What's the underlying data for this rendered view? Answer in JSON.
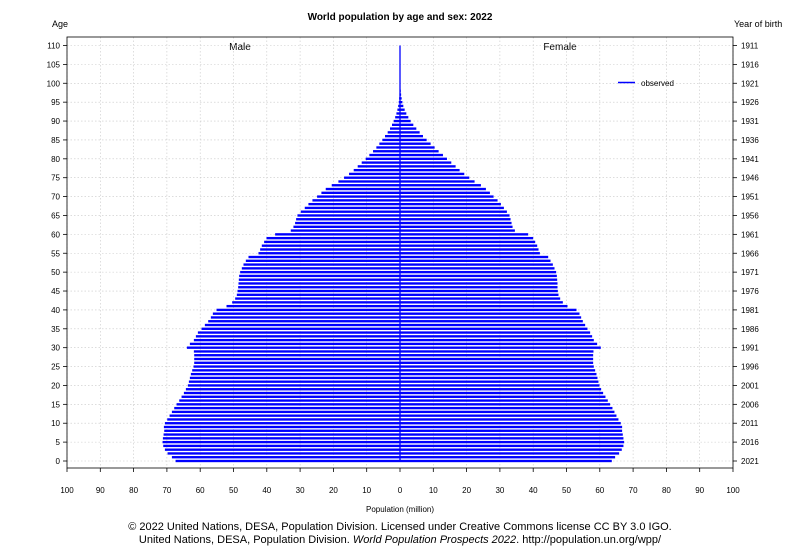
{
  "chart_data": {
    "type": "bar",
    "title": "World population by age and sex: 2022",
    "left_axis_title": "Age",
    "right_axis_title": "Year of birth",
    "xlabel": "Population (million)",
    "left_panel_label": "Male",
    "right_panel_label": "Female",
    "legend": {
      "label": "observed",
      "placement": "top-right",
      "color": "#0000ff"
    },
    "bar_color": "#0000ff",
    "grid": true,
    "xlim": [
      -100,
      100
    ],
    "ylim": [
      0,
      110
    ],
    "x_ticks": [
      -100,
      -90,
      -80,
      -70,
      -60,
      -50,
      -40,
      -30,
      -20,
      -10,
      0,
      10,
      20,
      30,
      40,
      50,
      60,
      70,
      80,
      90,
      100
    ],
    "x_tick_labels": [
      "100",
      "90",
      "80",
      "70",
      "60",
      "50",
      "40",
      "30",
      "20",
      "10",
      "0",
      "10",
      "20",
      "30",
      "40",
      "50",
      "60",
      "70",
      "80",
      "90",
      "100"
    ],
    "age_ticks": [
      0,
      5,
      10,
      15,
      20,
      25,
      30,
      35,
      40,
      45,
      50,
      55,
      60,
      65,
      70,
      75,
      80,
      85,
      90,
      95,
      100,
      105,
      110
    ],
    "age_tick_labels": [
      "0",
      "5",
      "10",
      "15",
      "20",
      "25",
      "30",
      "35",
      "40",
      "45",
      "50",
      "55",
      "60",
      "65",
      "70",
      "75",
      "80",
      "85",
      "90",
      "95",
      "100",
      "105",
      "110"
    ],
    "birth_year_ticks": [
      {
        "age": 1,
        "label": "2021"
      },
      {
        "age": 6,
        "label": "2016"
      },
      {
        "age": 11,
        "label": "2011"
      },
      {
        "age": 16,
        "label": "2006"
      },
      {
        "age": 21,
        "label": "2001"
      },
      {
        "age": 26,
        "label": "1996"
      },
      {
        "age": 31,
        "label": "1991"
      },
      {
        "age": 36,
        "label": "1986"
      },
      {
        "age": 41,
        "label": "1981"
      },
      {
        "age": 46,
        "label": "1976"
      },
      {
        "age": 51,
        "label": "1971"
      },
      {
        "age": 56,
        "label": "1966"
      },
      {
        "age": 61,
        "label": "1961"
      },
      {
        "age": 66,
        "label": "1956"
      },
      {
        "age": 71,
        "label": "1951"
      },
      {
        "age": 76,
        "label": "1946"
      },
      {
        "age": 81,
        "label": "1941"
      },
      {
        "age": 86,
        "label": "1936"
      },
      {
        "age": 91,
        "label": "1931"
      },
      {
        "age": 96,
        "label": "1926"
      },
      {
        "age": 101,
        "label": "1921"
      },
      {
        "age": 106,
        "label": "1916"
      },
      {
        "age": 111,
        "label": "1911"
      }
    ],
    "ages": [
      0,
      1,
      2,
      3,
      4,
      5,
      6,
      7,
      8,
      9,
      10,
      11,
      12,
      13,
      14,
      15,
      16,
      17,
      18,
      19,
      20,
      21,
      22,
      23,
      24,
      25,
      26,
      27,
      28,
      29,
      30,
      31,
      32,
      33,
      34,
      35,
      36,
      37,
      38,
      39,
      40,
      41,
      42,
      43,
      44,
      45,
      46,
      47,
      48,
      49,
      50,
      51,
      52,
      53,
      54,
      55,
      56,
      57,
      58,
      59,
      60,
      61,
      62,
      63,
      64,
      65,
      66,
      67,
      68,
      69,
      70,
      71,
      72,
      73,
      74,
      75,
      76,
      77,
      78,
      79,
      80,
      81,
      82,
      83,
      84,
      85,
      86,
      87,
      88,
      89,
      90,
      91,
      92,
      93,
      94,
      95,
      96,
      97,
      98,
      99,
      100,
      101,
      102,
      103,
      104,
      105,
      106,
      107,
      108,
      109,
      110
    ],
    "series": [
      {
        "name": "Male",
        "values": [
          67.4,
          68.5,
          69.8,
          70.6,
          71.1,
          71.3,
          71.2,
          71.0,
          70.8,
          70.9,
          70.6,
          69.9,
          69.2,
          68.5,
          67.8,
          67.1,
          66.3,
          65.6,
          64.9,
          64.3,
          63.7,
          63.4,
          63.1,
          62.8,
          62.4,
          62.0,
          61.8,
          61.8,
          61.8,
          61.9,
          64.0,
          63.1,
          61.9,
          61.3,
          60.7,
          59.6,
          58.6,
          57.6,
          56.8,
          56.2,
          55.1,
          52.1,
          50.4,
          49.5,
          49.0,
          48.8,
          48.6,
          48.5,
          48.4,
          48.3,
          48.0,
          47.5,
          47.0,
          46.3,
          45.5,
          42.5,
          42.0,
          41.5,
          40.8,
          40.1,
          37.5,
          32.8,
          32.0,
          31.5,
          31.2,
          30.8,
          29.8,
          28.6,
          27.5,
          26.3,
          24.9,
          23.6,
          22.3,
          20.5,
          18.5,
          16.8,
          15.3,
          13.9,
          12.7,
          11.5,
          10.3,
          9.2,
          8.1,
          7.1,
          6.2,
          5.3,
          4.5,
          3.7,
          3.0,
          2.4,
          1.9,
          1.45,
          1.08,
          0.78,
          0.55,
          0.38,
          0.26,
          0.17,
          0.11,
          0.07,
          0.045,
          0.03,
          0.02,
          0.015,
          0.01,
          0.008,
          0.006,
          0.005,
          0.004,
          0.003,
          0.002
        ]
      },
      {
        "name": "Female",
        "values": [
          63.6,
          64.6,
          65.8,
          66.6,
          67.1,
          67.3,
          67.1,
          66.9,
          66.7,
          66.7,
          66.3,
          65.6,
          65.0,
          64.4,
          63.8,
          63.1,
          62.4,
          61.7,
          61.0,
          60.4,
          59.9,
          59.6,
          59.3,
          59.0,
          58.6,
          58.2,
          58.0,
          58.0,
          58.0,
          58.1,
          60.3,
          59.2,
          58.2,
          57.7,
          57.1,
          56.3,
          55.6,
          54.9,
          54.4,
          53.9,
          53.0,
          50.3,
          48.9,
          48.1,
          47.6,
          47.4,
          47.3,
          47.3,
          47.2,
          47.1,
          46.9,
          46.4,
          45.9,
          45.2,
          44.5,
          42.0,
          41.6,
          41.2,
          40.6,
          40.0,
          38.5,
          34.5,
          33.8,
          33.5,
          33.2,
          32.9,
          32.1,
          31.2,
          30.3,
          29.3,
          28.1,
          27.0,
          25.8,
          24.3,
          22.4,
          20.8,
          19.3,
          17.9,
          16.7,
          15.4,
          14.1,
          12.9,
          11.6,
          10.4,
          9.2,
          8.0,
          6.9,
          5.9,
          4.9,
          4.0,
          3.2,
          2.5,
          1.9,
          1.4,
          1.0,
          0.72,
          0.5,
          0.34,
          0.23,
          0.15,
          0.1,
          0.066,
          0.044,
          0.03,
          0.02,
          0.014,
          0.01,
          0.007,
          0.005,
          0.004,
          0.003
        ]
      }
    ]
  },
  "footer": {
    "line1": "© 2022 United Nations, DESA, Population Division. Licensed under Creative Commons license CC BY 3.0 IGO.",
    "line2_prefix": "United Nations, DESA, Population Division. ",
    "line2_italic": "World Population Prospects 2022",
    "line2_suffix": ". http://population.un.org/wpp/"
  }
}
